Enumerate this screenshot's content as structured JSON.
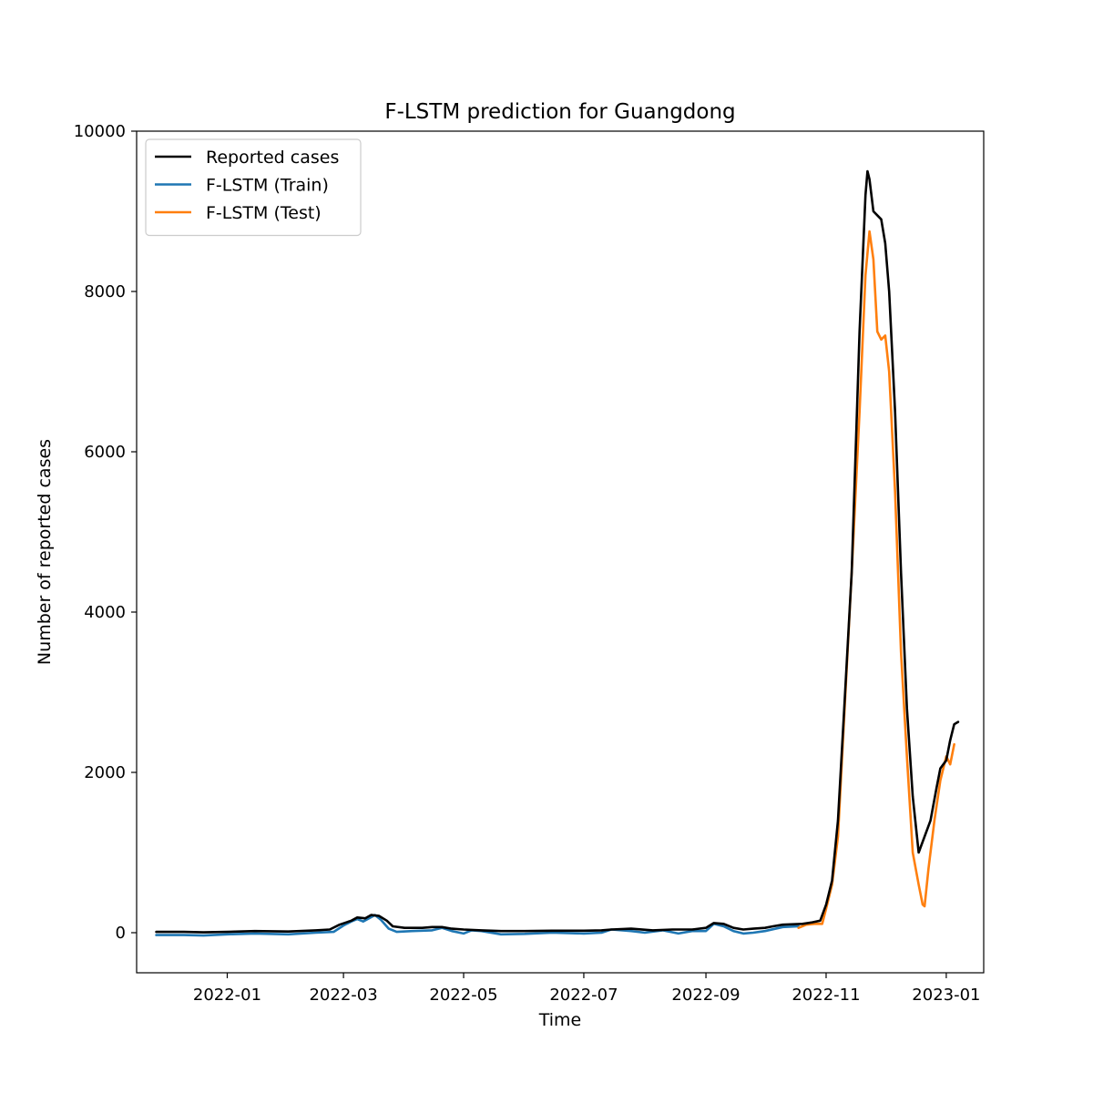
{
  "chart_data": {
    "type": "line",
    "title": "F-LSTM prediction for Guangdong",
    "xlabel": "Time",
    "ylabel": "Number of reported cases",
    "x_axis_type": "date",
    "xlim": [
      "2021-11-16",
      "2023-01-20"
    ],
    "ylim": [
      -500,
      10000
    ],
    "x_ticks": [
      "2022-01-01",
      "2022-03-01",
      "2022-05-01",
      "2022-07-01",
      "2022-09-01",
      "2022-11-01",
      "2023-01-01"
    ],
    "x_tick_labels": [
      "2022-01",
      "2022-03",
      "2022-05",
      "2022-07",
      "2022-09",
      "2022-11",
      "2023-01"
    ],
    "y_ticks": [
      0,
      2000,
      4000,
      6000,
      8000,
      10000
    ],
    "y_tick_labels": [
      "0",
      "2000",
      "4000",
      "6000",
      "8000",
      "10000"
    ],
    "grid": false,
    "legend_position": "top-left",
    "series": [
      {
        "name": "Reported cases",
        "color": "#000000",
        "points": [
          [
            "2021-11-26",
            10
          ],
          [
            "2021-12-10",
            10
          ],
          [
            "2021-12-20",
            5
          ],
          [
            "2022-01-01",
            10
          ],
          [
            "2022-01-15",
            20
          ],
          [
            "2022-02-01",
            15
          ],
          [
            "2022-02-15",
            30
          ],
          [
            "2022-02-22",
            40
          ],
          [
            "2022-02-27",
            100
          ],
          [
            "2022-03-05",
            150
          ],
          [
            "2022-03-08",
            190
          ],
          [
            "2022-03-12",
            180
          ],
          [
            "2022-03-15",
            220
          ],
          [
            "2022-03-19",
            210
          ],
          [
            "2022-03-23",
            150
          ],
          [
            "2022-03-26",
            80
          ],
          [
            "2022-04-01",
            60
          ],
          [
            "2022-04-10",
            60
          ],
          [
            "2022-04-15",
            70
          ],
          [
            "2022-04-20",
            70
          ],
          [
            "2022-04-25",
            50
          ],
          [
            "2022-05-01",
            40
          ],
          [
            "2022-05-10",
            30
          ],
          [
            "2022-05-20",
            20
          ],
          [
            "2022-06-01",
            20
          ],
          [
            "2022-06-15",
            25
          ],
          [
            "2022-07-01",
            25
          ],
          [
            "2022-07-10",
            30
          ],
          [
            "2022-07-15",
            40
          ],
          [
            "2022-07-25",
            50
          ],
          [
            "2022-08-05",
            30
          ],
          [
            "2022-08-15",
            40
          ],
          [
            "2022-08-25",
            40
          ],
          [
            "2022-09-01",
            60
          ],
          [
            "2022-09-05",
            120
          ],
          [
            "2022-09-10",
            110
          ],
          [
            "2022-09-15",
            60
          ],
          [
            "2022-09-20",
            40
          ],
          [
            "2022-09-25",
            50
          ],
          [
            "2022-10-01",
            60
          ],
          [
            "2022-10-05",
            80
          ],
          [
            "2022-10-10",
            100
          ],
          [
            "2022-10-20",
            110
          ],
          [
            "2022-10-25",
            130
          ],
          [
            "2022-10-29",
            150
          ],
          [
            "2022-11-01",
            350
          ],
          [
            "2022-11-04",
            650
          ],
          [
            "2022-11-07",
            1400
          ],
          [
            "2022-11-10",
            2700
          ],
          [
            "2022-11-14",
            4500
          ],
          [
            "2022-11-18",
            7500
          ],
          [
            "2022-11-21",
            9200
          ],
          [
            "2022-11-22",
            9500
          ],
          [
            "2022-11-23",
            9400
          ],
          [
            "2022-11-25",
            9000
          ],
          [
            "2022-11-29",
            8900
          ],
          [
            "2022-12-01",
            8600
          ],
          [
            "2022-12-03",
            8000
          ],
          [
            "2022-12-06",
            6500
          ],
          [
            "2022-12-09",
            4500
          ],
          [
            "2022-12-12",
            2800
          ],
          [
            "2022-12-15",
            1700
          ],
          [
            "2022-12-18",
            1000
          ],
          [
            "2022-12-21",
            1200
          ],
          [
            "2022-12-24",
            1400
          ],
          [
            "2022-12-27",
            1800
          ],
          [
            "2022-12-29",
            2050
          ],
          [
            "2023-01-01",
            2150
          ],
          [
            "2023-01-03",
            2400
          ],
          [
            "2023-01-05",
            2600
          ],
          [
            "2023-01-07",
            2630
          ]
        ]
      },
      {
        "name": "F-LSTM (Train)",
        "color": "#1f77b4",
        "points": [
          [
            "2021-11-26",
            -30
          ],
          [
            "2021-12-10",
            -30
          ],
          [
            "2021-12-20",
            -35
          ],
          [
            "2022-01-01",
            -20
          ],
          [
            "2022-01-15",
            -10
          ],
          [
            "2022-02-01",
            -20
          ],
          [
            "2022-02-15",
            0
          ],
          [
            "2022-02-24",
            10
          ],
          [
            "2022-03-01",
            90
          ],
          [
            "2022-03-05",
            140
          ],
          [
            "2022-03-08",
            170
          ],
          [
            "2022-03-11",
            140
          ],
          [
            "2022-03-14",
            180
          ],
          [
            "2022-03-17",
            220
          ],
          [
            "2022-03-20",
            160
          ],
          [
            "2022-03-24",
            50
          ],
          [
            "2022-03-28",
            10
          ],
          [
            "2022-04-05",
            20
          ],
          [
            "2022-04-15",
            30
          ],
          [
            "2022-04-20",
            60
          ],
          [
            "2022-04-25",
            20
          ],
          [
            "2022-05-01",
            -10
          ],
          [
            "2022-05-05",
            30
          ],
          [
            "2022-05-10",
            20
          ],
          [
            "2022-05-20",
            -20
          ],
          [
            "2022-06-01",
            -15
          ],
          [
            "2022-06-15",
            0
          ],
          [
            "2022-07-01",
            -10
          ],
          [
            "2022-07-10",
            0
          ],
          [
            "2022-07-15",
            40
          ],
          [
            "2022-07-25",
            20
          ],
          [
            "2022-08-01",
            0
          ],
          [
            "2022-08-10",
            30
          ],
          [
            "2022-08-18",
            -10
          ],
          [
            "2022-08-25",
            20
          ],
          [
            "2022-09-01",
            20
          ],
          [
            "2022-09-05",
            110
          ],
          [
            "2022-09-10",
            80
          ],
          [
            "2022-09-15",
            20
          ],
          [
            "2022-09-20",
            -10
          ],
          [
            "2022-09-25",
            0
          ],
          [
            "2022-10-01",
            20
          ],
          [
            "2022-10-10",
            70
          ],
          [
            "2022-10-18",
            80
          ]
        ]
      },
      {
        "name": "F-LSTM (Test)",
        "color": "#ff7f0e",
        "points": [
          [
            "2022-10-18",
            60
          ],
          [
            "2022-10-22",
            100
          ],
          [
            "2022-10-26",
            110
          ],
          [
            "2022-10-30",
            110
          ],
          [
            "2022-11-01",
            300
          ],
          [
            "2022-11-04",
            600
          ],
          [
            "2022-11-07",
            1200
          ],
          [
            "2022-11-10",
            2600
          ],
          [
            "2022-11-14",
            4500
          ],
          [
            "2022-11-18",
            6500
          ],
          [
            "2022-11-21",
            8200
          ],
          [
            "2022-11-23",
            8750
          ],
          [
            "2022-11-25",
            8400
          ],
          [
            "2022-11-27",
            7500
          ],
          [
            "2022-11-29",
            7400
          ],
          [
            "2022-12-01",
            7450
          ],
          [
            "2022-12-03",
            7000
          ],
          [
            "2022-12-06",
            5500
          ],
          [
            "2022-12-09",
            3500
          ],
          [
            "2022-12-12",
            2200
          ],
          [
            "2022-12-15",
            1000
          ],
          [
            "2022-12-18",
            600
          ],
          [
            "2022-12-20",
            350
          ],
          [
            "2022-12-21",
            330
          ],
          [
            "2022-12-23",
            800
          ],
          [
            "2022-12-26",
            1400
          ],
          [
            "2022-12-29",
            1900
          ],
          [
            "2023-01-01",
            2200
          ],
          [
            "2023-01-03",
            2100
          ],
          [
            "2023-01-05",
            2350
          ]
        ]
      }
    ]
  }
}
